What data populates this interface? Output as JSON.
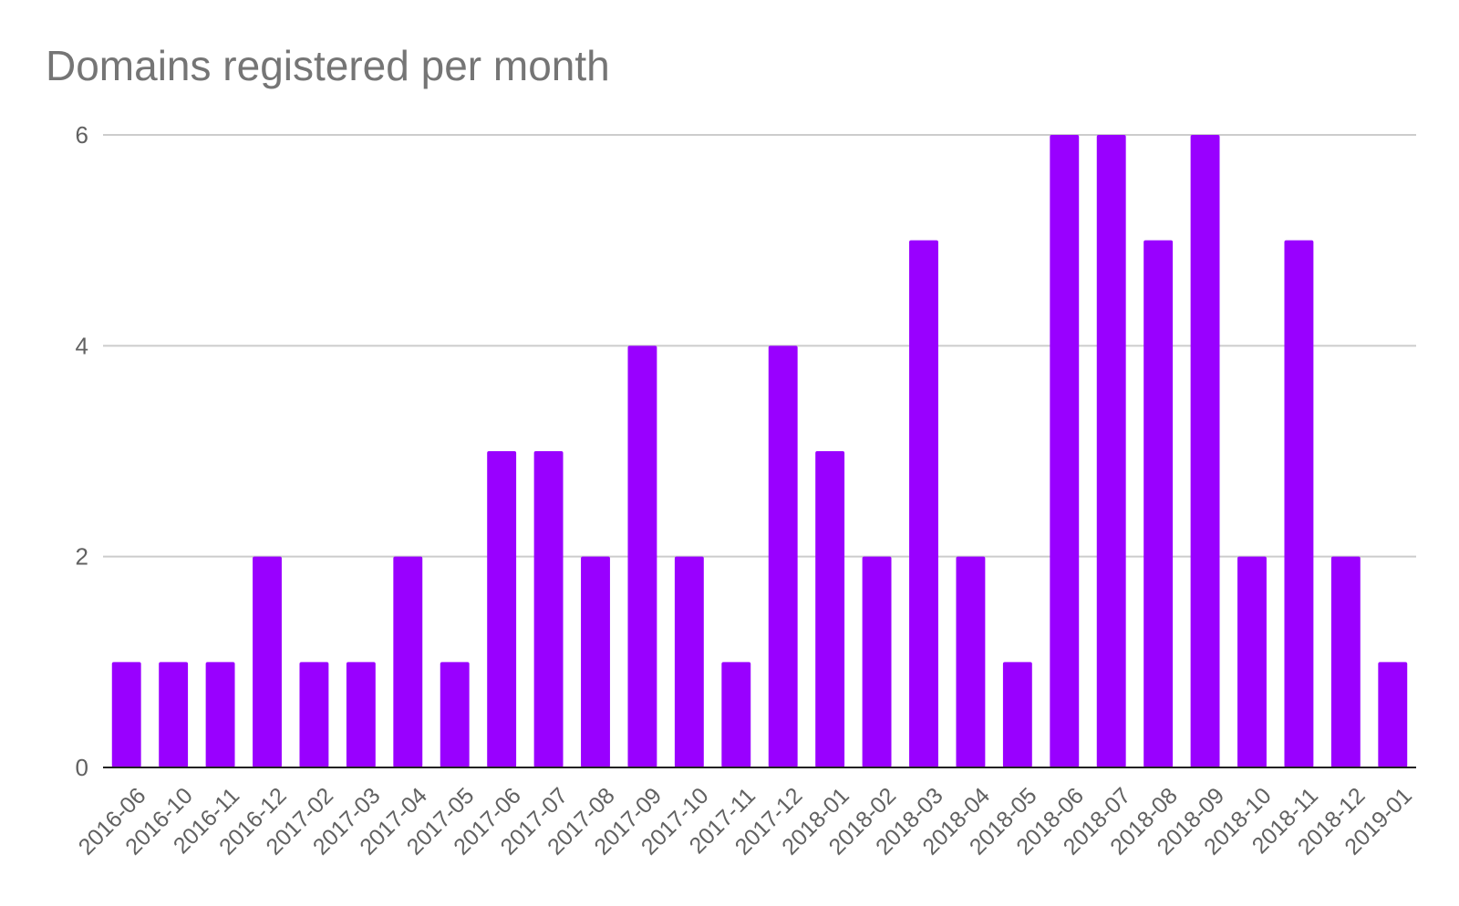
{
  "chart_data": {
    "type": "bar",
    "title": "Domains registered per month",
    "xlabel": "",
    "ylabel": "",
    "categories": [
      "2016-06",
      "2016-10",
      "2016-11",
      "2016-12",
      "2017-02",
      "2017-03",
      "2017-04",
      "2017-05",
      "2017-06",
      "2017-07",
      "2017-08",
      "2017-09",
      "2017-10",
      "2017-11",
      "2017-12",
      "2018-01",
      "2018-02",
      "2018-03",
      "2018-04",
      "2018-05",
      "2018-06",
      "2018-07",
      "2018-08",
      "2018-09",
      "2018-10",
      "2018-11",
      "2018-12",
      "2019-01"
    ],
    "values": [
      1,
      1,
      1,
      2,
      1,
      1,
      2,
      1,
      3,
      3,
      2,
      4,
      2,
      1,
      4,
      3,
      2,
      5,
      2,
      1,
      6,
      6,
      5,
      6,
      2,
      5,
      2,
      1
    ],
    "ylim": [
      0,
      6
    ],
    "yticks": [
      0,
      2,
      4,
      6
    ],
    "grid": true,
    "legend": "none",
    "colors": {
      "bar": "#9900ff",
      "grid": "#cccccc",
      "axis": "#222222",
      "title": "#757575",
      "tick_label": "#616161"
    }
  }
}
